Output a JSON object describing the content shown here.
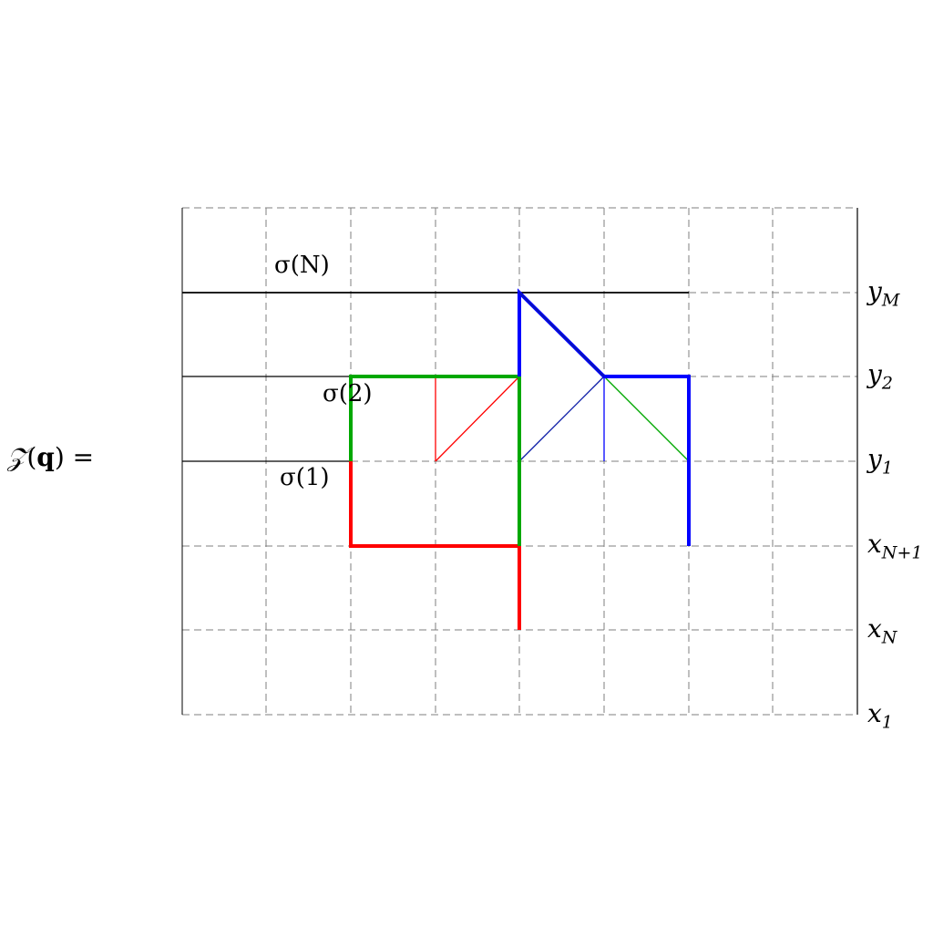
{
  "formula": {
    "script_z": "𝒵",
    "open": "(",
    "arg": "q",
    "close_eq": ") ="
  },
  "row_labels": [
    {
      "base": "y",
      "sub": "M"
    },
    {
      "base": "y",
      "sub": "2"
    },
    {
      "base": "y",
      "sub": "1"
    },
    {
      "base": "x",
      "sub": "N+1"
    },
    {
      "base": "x",
      "sub": "N"
    },
    {
      "base": "x",
      "sub": "1"
    }
  ],
  "sigma_labels": [
    "σ(N)",
    "σ(2)",
    "σ(1)"
  ],
  "colors": {
    "grid": "#7f7f7f",
    "black": "#000000",
    "red": "#ff0000",
    "green": "#00a800",
    "blue": "#0000ff",
    "navy": "#0a1aa6"
  }
}
